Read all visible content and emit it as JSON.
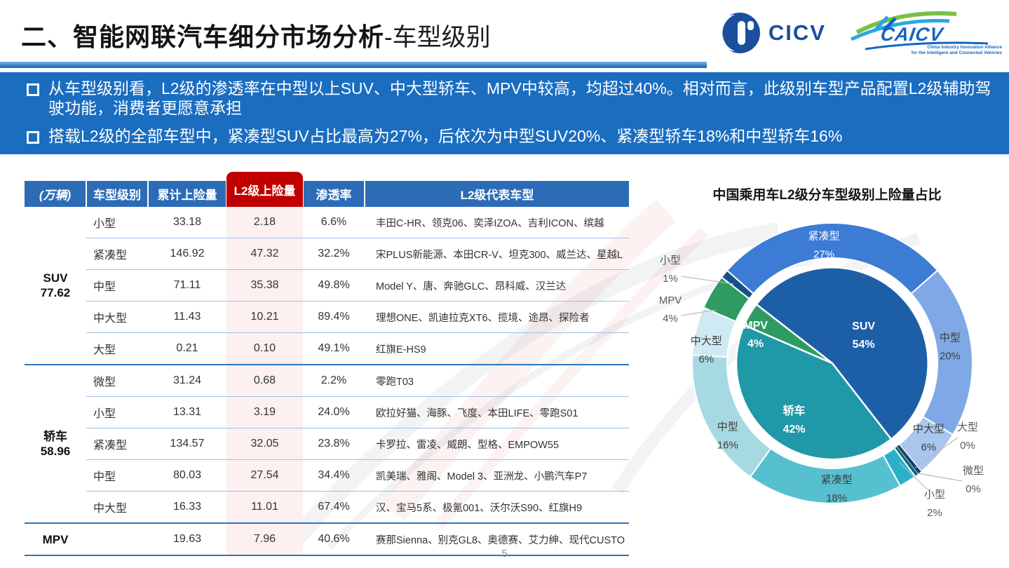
{
  "header": {
    "title_main": "二、智能网联汽车细分市场分析",
    "title_suffix": "-车型级别",
    "logo_cicv_text": "CICV",
    "logo_caicv_text": "CAICV",
    "logo_caicv_caption_line1": "China Industry Innovation Alliance",
    "logo_caicv_caption_line2": "for the Intelligent and Connected Vehicles"
  },
  "bullets": [
    "从车型级别看，L2级的渗透率在中型以上SUV、中大型轿车、MPV中较高，均超过40%。相对而言，此级别车型产品配置L2级辅助驾驶功能，消费者更愿意承担",
    "搭载L2级的全部车型中，紧凑型SUV占比最高为27%，后依次为中型SUV20%、紧凑型轿车18%和中型轿车16%"
  ],
  "table": {
    "unit_note": "(万辆)",
    "columns": [
      "车型级别",
      "累计上险量",
      "L2级上险量",
      "渗透率",
      "L2级代表车型"
    ],
    "groups": [
      {
        "name": "SUV",
        "total": "77.62",
        "rows": [
          {
            "class": "小型",
            "cum": "33.18",
            "l2": "2.18",
            "rate": "6.6%",
            "models": "丰田C-HR、领克06、奕泽IZOA、吉利ICON、缤越"
          },
          {
            "class": "紧凑型",
            "cum": "146.92",
            "l2": "47.32",
            "rate": "32.2%",
            "models": "宋PLUS新能源、本田CR-V、坦克300、威兰达、星越L"
          },
          {
            "class": "中型",
            "cum": "71.11",
            "l2": "35.38",
            "rate": "49.8%",
            "models": "Model Y、唐、奔驰GLC、昂科威、汉兰达"
          },
          {
            "class": "中大型",
            "cum": "11.43",
            "l2": "10.21",
            "rate": "89.4%",
            "models": "理想ONE、凯迪拉克XT6、揽境、途昂、探险者"
          },
          {
            "class": "大型",
            "cum": "0.21",
            "l2": "0.10",
            "rate": "49.1%",
            "models": "红旗E-HS9"
          }
        ]
      },
      {
        "name": "轿车",
        "total": "58.96",
        "rows": [
          {
            "class": "微型",
            "cum": "31.24",
            "l2": "0.68",
            "rate": "2.2%",
            "models": "零跑T03"
          },
          {
            "class": "小型",
            "cum": "13.31",
            "l2": "3.19",
            "rate": "24.0%",
            "models": "欧拉好猫、海豚、飞度、本田LIFE、零跑S01"
          },
          {
            "class": "紧凑型",
            "cum": "134.57",
            "l2": "32.05",
            "rate": "23.8%",
            "models": "卡罗拉、雷凌、威朗、型格、EMPOW55"
          },
          {
            "class": "中型",
            "cum": "80.03",
            "l2": "27.54",
            "rate": "34.4%",
            "models": "凯美瑞、雅阁、Model 3、亚洲龙、小鹏汽车P7"
          },
          {
            "class": "中大型",
            "cum": "16.33",
            "l2": "11.01",
            "rate": "67.4%",
            "models": "汉、宝马5系、极氪001、沃尔沃S90、红旗H9"
          }
        ]
      },
      {
        "name": "MPV",
        "total": "",
        "rows": [
          {
            "class": "",
            "cum": "19.63",
            "l2": "7.96",
            "rate": "40.6%",
            "models": "赛那Sienna、别克GL8、奥德赛、艾力绅、现代CUSTO"
          }
        ]
      }
    ]
  },
  "chart_data": {
    "type": "pie",
    "title": "中国乘用车L2级分车型级别上险量占比",
    "legend_position": "none",
    "start_angle_deg": -52.2,
    "inner_ring": [
      {
        "label": "SUV",
        "pct": "54%",
        "value": 54,
        "color": "#1d5fa7"
      },
      {
        "label": "轿车",
        "pct": "42%",
        "value": 42,
        "color": "#1f98a8"
      },
      {
        "label": "MPV",
        "pct": "4%",
        "value": 4,
        "color": "#2e9b62"
      }
    ],
    "outer_ring": [
      {
        "label": "小型",
        "pct": "1%",
        "value": 1,
        "color": "#174f8d",
        "placement": "out"
      },
      {
        "label": "紧凑型",
        "pct": "27%",
        "value": 27,
        "color": "#3c7cd4",
        "placement": "in-light"
      },
      {
        "label": "中型",
        "pct": "20%",
        "value": 20,
        "color": "#7fa9e6",
        "placement": "in"
      },
      {
        "label": "中大型",
        "pct": "6%",
        "value": 5.55,
        "color": "#a9c6ee",
        "placement": "in"
      },
      {
        "label": "大型",
        "pct": "0%",
        "value": 0.45,
        "color": "#14406b",
        "placement": "out"
      },
      {
        "label": "微型",
        "pct": "0%",
        "value": 0.45,
        "color": "#0e6a7a",
        "placement": "out"
      },
      {
        "label": "小型",
        "pct": "2%",
        "value": 2,
        "color": "#2cb0c9",
        "placement": "out"
      },
      {
        "label": "紧凑型",
        "pct": "18%",
        "value": 18,
        "color": "#56c0d0",
        "placement": "in"
      },
      {
        "label": "中型",
        "pct": "16%",
        "value": 16,
        "color": "#a5dae2",
        "placement": "in"
      },
      {
        "label": "中大型",
        "pct": "6%",
        "value": 5.55,
        "color": "#cfeaf2",
        "placement": "in"
      },
      {
        "label": "MPV",
        "pct": "4%",
        "value": 4,
        "color": "#2e9b62",
        "placement": "out"
      }
    ]
  },
  "footer": {
    "page_number": "5"
  }
}
